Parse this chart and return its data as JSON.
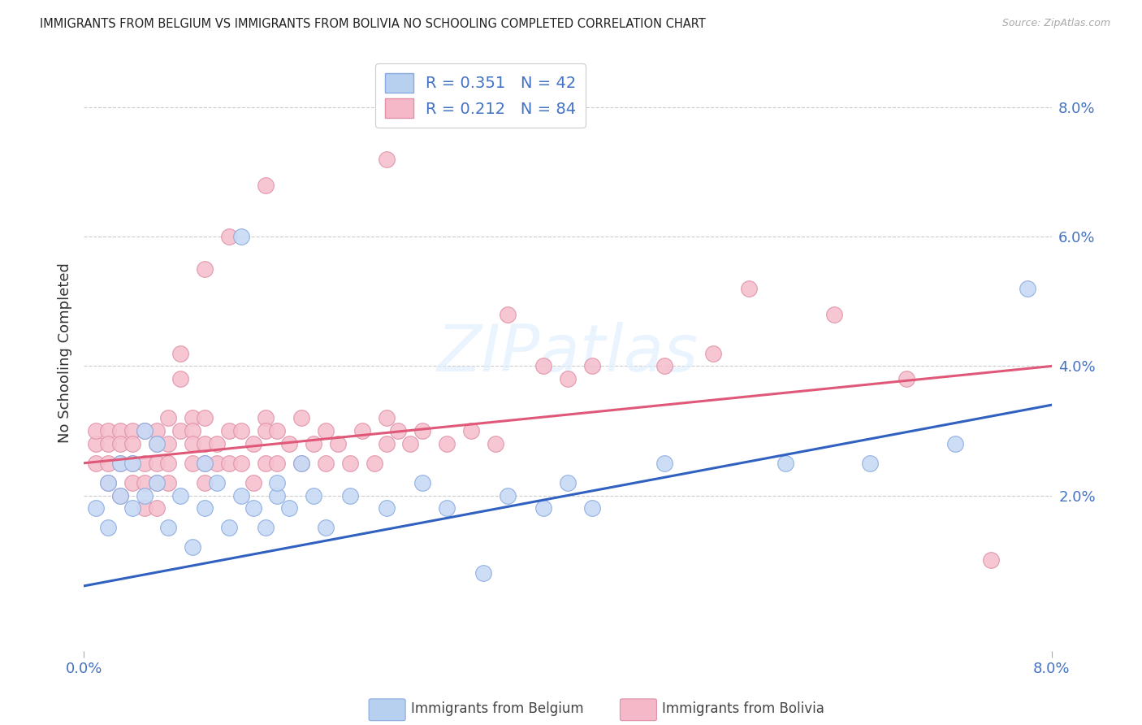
{
  "title": "IMMIGRANTS FROM BELGIUM VS IMMIGRANTS FROM BOLIVIA NO SCHOOLING COMPLETED CORRELATION CHART",
  "source": "Source: ZipAtlas.com",
  "ylabel": "No Schooling Completed",
  "xlim": [
    0.0,
    0.08
  ],
  "ylim": [
    -0.004,
    0.088
  ],
  "yticks": [
    0.0,
    0.02,
    0.04,
    0.06,
    0.08
  ],
  "ytick_labels": [
    "",
    "2.0%",
    "4.0%",
    "6.0%",
    "8.0%"
  ],
  "legend1_label": "R = 0.351   N = 42",
  "legend2_label": "R = 0.212   N = 84",
  "legend1_color": "#b8d0f0",
  "legend2_color": "#f4b8c8",
  "line1_color": "#3060c0",
  "line2_color": "#e05878",
  "scatter1_color": "#c8daf5",
  "scatter2_color": "#f5c0cd",
  "scatter1_edge": "#88aae0",
  "scatter2_edge": "#e090a8",
  "watermark": "ZIPatlas",
  "footer_label1": "Immigrants from Belgium",
  "footer_label2": "Immigrants from Bolivia",
  "bel_line_x": [
    0.0,
    0.08
  ],
  "bel_line_y": [
    0.006,
    0.034
  ],
  "bol_line_x": [
    0.0,
    0.08
  ],
  "bol_line_y": [
    0.025,
    0.04
  ],
  "belgium_x": [
    0.001,
    0.002,
    0.002,
    0.003,
    0.003,
    0.004,
    0.004,
    0.005,
    0.005,
    0.006,
    0.006,
    0.007,
    0.008,
    0.009,
    0.01,
    0.01,
    0.011,
    0.012,
    0.013,
    0.013,
    0.014,
    0.015,
    0.016,
    0.016,
    0.017,
    0.018,
    0.019,
    0.02,
    0.022,
    0.025,
    0.028,
    0.03,
    0.033,
    0.035,
    0.038,
    0.04,
    0.042,
    0.048,
    0.058,
    0.065,
    0.072,
    0.078
  ],
  "belgium_y": [
    0.018,
    0.022,
    0.015,
    0.025,
    0.02,
    0.018,
    0.025,
    0.02,
    0.03,
    0.022,
    0.028,
    0.015,
    0.02,
    0.012,
    0.025,
    0.018,
    0.022,
    0.015,
    0.02,
    0.06,
    0.018,
    0.015,
    0.02,
    0.022,
    0.018,
    0.025,
    0.02,
    0.015,
    0.02,
    0.018,
    0.022,
    0.018,
    0.008,
    0.02,
    0.018,
    0.022,
    0.018,
    0.025,
    0.025,
    0.025,
    0.028,
    0.052
  ],
  "bolivia_x": [
    0.001,
    0.001,
    0.001,
    0.002,
    0.002,
    0.002,
    0.002,
    0.003,
    0.003,
    0.003,
    0.003,
    0.004,
    0.004,
    0.004,
    0.004,
    0.005,
    0.005,
    0.005,
    0.005,
    0.006,
    0.006,
    0.006,
    0.006,
    0.006,
    0.007,
    0.007,
    0.007,
    0.007,
    0.008,
    0.008,
    0.008,
    0.009,
    0.009,
    0.009,
    0.009,
    0.01,
    0.01,
    0.01,
    0.01,
    0.011,
    0.011,
    0.012,
    0.012,
    0.013,
    0.013,
    0.014,
    0.014,
    0.015,
    0.015,
    0.015,
    0.016,
    0.016,
    0.017,
    0.018,
    0.018,
    0.019,
    0.02,
    0.02,
    0.021,
    0.022,
    0.023,
    0.024,
    0.025,
    0.025,
    0.026,
    0.027,
    0.028,
    0.03,
    0.032,
    0.034,
    0.035,
    0.038,
    0.04,
    0.042,
    0.048,
    0.052,
    0.055,
    0.062,
    0.068,
    0.075,
    0.025,
    0.01,
    0.012,
    0.015
  ],
  "bolivia_y": [
    0.028,
    0.03,
    0.025,
    0.03,
    0.025,
    0.028,
    0.022,
    0.03,
    0.025,
    0.028,
    0.02,
    0.03,
    0.025,
    0.028,
    0.022,
    0.03,
    0.025,
    0.022,
    0.018,
    0.03,
    0.028,
    0.025,
    0.022,
    0.018,
    0.032,
    0.028,
    0.025,
    0.022,
    0.042,
    0.038,
    0.03,
    0.032,
    0.03,
    0.028,
    0.025,
    0.032,
    0.028,
    0.025,
    0.022,
    0.028,
    0.025,
    0.03,
    0.025,
    0.03,
    0.025,
    0.028,
    0.022,
    0.032,
    0.03,
    0.025,
    0.03,
    0.025,
    0.028,
    0.032,
    0.025,
    0.028,
    0.03,
    0.025,
    0.028,
    0.025,
    0.03,
    0.025,
    0.032,
    0.028,
    0.03,
    0.028,
    0.03,
    0.028,
    0.03,
    0.028,
    0.048,
    0.04,
    0.038,
    0.04,
    0.04,
    0.042,
    0.052,
    0.048,
    0.038,
    0.01,
    0.072,
    0.055,
    0.06,
    0.068
  ]
}
